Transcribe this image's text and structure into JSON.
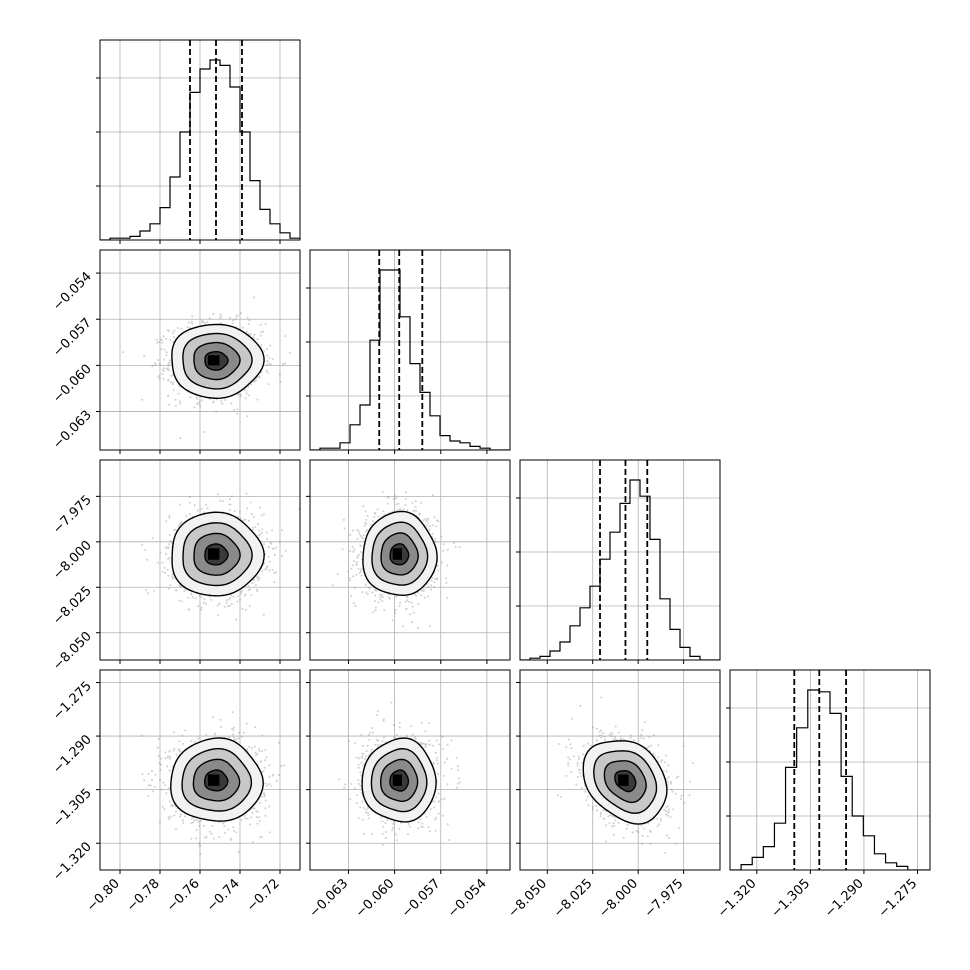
{
  "chart_data": {
    "type": "corner",
    "grid": true,
    "parameters": [
      {
        "range": [
          -0.81,
          -0.71
        ],
        "ticks": [
          "−0.80",
          "−0.78",
          "−0.76",
          "−0.74",
          "−0.72"
        ],
        "tick_values": [
          -0.8,
          -0.78,
          -0.76,
          -0.74,
          -0.72
        ],
        "mean": -0.752,
        "sd": 0.0115,
        "quantiles": [
          -0.765,
          -0.752,
          -0.739
        ],
        "hist_counts": [
          0,
          1,
          1,
          2,
          5,
          9,
          18,
          35,
          60,
          82,
          95,
          100,
          97,
          85,
          60,
          33,
          17,
          9,
          4,
          1
        ]
      },
      {
        "range": [
          -0.0655,
          -0.0525
        ],
        "ticks": [
          "−0.063",
          "−0.060",
          "−0.057",
          "−0.054"
        ],
        "tick_values": [
          -0.063,
          -0.06,
          -0.057,
          -0.054
        ],
        "mean": -0.0597,
        "sd": 0.0012,
        "quantiles": [
          -0.061,
          -0.0597,
          -0.0582
        ],
        "hist_counts": [
          0,
          1,
          1,
          4,
          14,
          25,
          61,
          100,
          100,
          74,
          48,
          32,
          19,
          8,
          5,
          4,
          2,
          1,
          0,
          0
        ]
      },
      {
        "range": [
          -8.065,
          -7.955
        ],
        "ticks": [
          "−8.050",
          "−8.025",
          "−8.000",
          "−7.975"
        ],
        "tick_values": [
          -8.05,
          -8.025,
          -8.0,
          -7.975
        ],
        "mean": -8.007,
        "sd": 0.0115,
        "quantiles": [
          -8.021,
          -8.007,
          -7.995
        ],
        "hist_counts": [
          0,
          1,
          2,
          5,
          10,
          19,
          29,
          41,
          56,
          71,
          87,
          100,
          91,
          67,
          34,
          17,
          7,
          2,
          0,
          0
        ]
      },
      {
        "range": [
          -1.3275,
          -1.2715
        ],
        "ticks": [
          "−1.320",
          "−1.305",
          "−1.290",
          "−1.275"
        ],
        "tick_values": [
          -1.32,
          -1.305,
          -1.29,
          -1.275
        ],
        "mean": -1.3025,
        "sd": 0.0058,
        "quantiles": [
          -1.3095,
          -1.3025,
          -1.295
        ],
        "hist_counts": [
          0,
          3,
          7,
          13,
          26,
          57,
          79,
          100,
          99,
          87,
          52,
          30,
          19,
          9,
          4,
          2,
          0,
          0
        ]
      }
    ],
    "correlations": [
      [
        1,
        0,
        0,
        0
      ],
      [
        0,
        1,
        0,
        0
      ],
      [
        0,
        0,
        1,
        -0.25
      ],
      [
        0,
        0,
        -0.25,
        1
      ]
    ],
    "contour_levels_sigma": [
      0.5,
      1,
      1.5,
      2
    ]
  }
}
